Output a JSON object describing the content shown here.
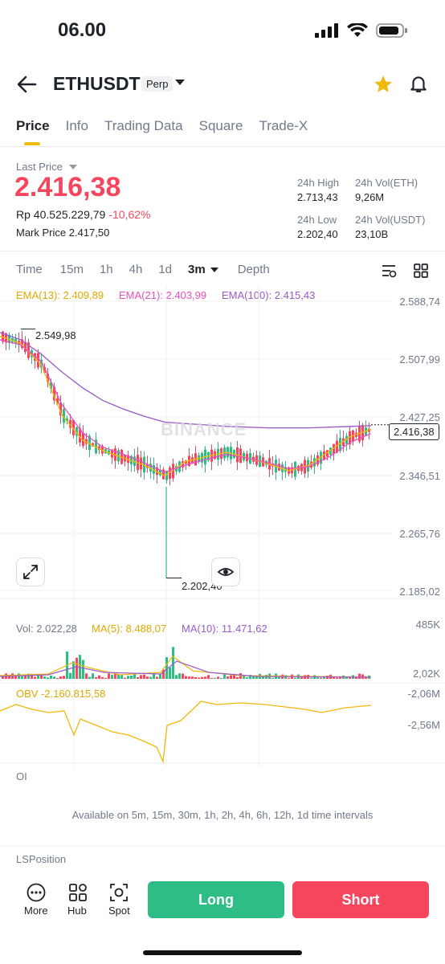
{
  "status_bar": {
    "time": "06.00"
  },
  "header": {
    "symbol": "ETHUSDT",
    "badge": "Perp"
  },
  "tabs": [
    "Price",
    "Info",
    "Trading Data",
    "Square",
    "Trade-X"
  ],
  "ticker": {
    "last_price_label": "Last Price",
    "last_price": "2.416,38",
    "rp_value": "Rp 40.525.229,79",
    "change": "-10,62%",
    "mark_price_label": "Mark Price",
    "mark_price": "2.417,50",
    "stats": {
      "high_label": "24h High",
      "high": "2.713,43",
      "vol_eth_label": "24h Vol(ETH)",
      "vol_eth": "9,26M",
      "low_label": "24h Low",
      "low": "2.202,40",
      "vol_usdt_label": "24h Vol(USDT)",
      "vol_usdt": "23,10B"
    }
  },
  "timeframes": {
    "items": [
      "Time",
      "15m",
      "1h",
      "4h",
      "1d"
    ],
    "selected": "3m",
    "depth": "Depth"
  },
  "indicators": {
    "ema13": "EMA(13): 2.409,89",
    "ema21": "EMA(21): 2.403,99",
    "ema100": "EMA(100): 2.415,43",
    "vol": "Vol: 2.022,28",
    "ma5": "MA(5): 8.488,07",
    "ma10": "MA(10): 11.471,62",
    "obv": "OBV -2.160.815,58",
    "oi": "OI",
    "oi_note": "Available on 5m, 15m, 30m, 1h, 2h, 4h, 6h, 12h, 1d time intervals",
    "lsposition": "LSPosition"
  },
  "price_axis": [
    "2.588,74",
    "2.507,99",
    "2.427,25",
    "2.346,51",
    "2.265,76",
    "2.185,02"
  ],
  "current_price_tag": "2.416,38",
  "high_marker": "2.549,98",
  "low_marker": "2.202,40",
  "watermark": "BINANCE",
  "vol_axis": [
    "485K",
    "2,02K"
  ],
  "obv_axis": [
    "-2,06M",
    "-2,56M"
  ],
  "colors": {
    "up": "#2ebd85",
    "down": "#f6465d",
    "accent": "#f0b90b",
    "ema13": "#f0b90b",
    "ema21": "#e84fc0",
    "ema100": "#9b59c9"
  },
  "chart_data": {
    "type": "line",
    "title": "",
    "ylim": [
      2185.02,
      2588.74
    ],
    "series": [
      {
        "name": "EMA(13)",
        "values": [
          2540,
          2530,
          2500,
          2430,
          2395,
          2380,
          2370,
          2360,
          2345,
          2365,
          2372,
          2378,
          2370,
          2362,
          2352,
          2360,
          2380,
          2400,
          2410
        ]
      },
      {
        "name": "EMA(21)",
        "values": [
          2535,
          2528,
          2505,
          2445,
          2405,
          2385,
          2375,
          2363,
          2350,
          2360,
          2368,
          2375,
          2370,
          2363,
          2355,
          2358,
          2372,
          2392,
          2404
        ]
      },
      {
        "name": "EMA(100)",
        "values": [
          2545,
          2535,
          2515,
          2490,
          2468,
          2450,
          2438,
          2428,
          2420,
          2418,
          2416,
          2414,
          2413,
          2412,
          2412,
          2412,
          2413,
          2414,
          2415
        ]
      }
    ]
  }
}
